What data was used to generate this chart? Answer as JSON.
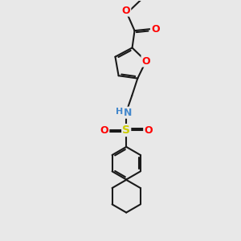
{
  "bg_color": "#e8e8e8",
  "bond_color": "#1a1a1a",
  "bond_width": 1.5,
  "atom_colors": {
    "O": "#ff0000",
    "N": "#4488cc",
    "S": "#cccc00",
    "C": "#1a1a1a",
    "H": "#888888"
  },
  "fig_w": 3.0,
  "fig_h": 3.0,
  "dpi": 100,
  "xlim": [
    -2.2,
    2.2
  ],
  "ylim": [
    -3.8,
    3.8
  ]
}
